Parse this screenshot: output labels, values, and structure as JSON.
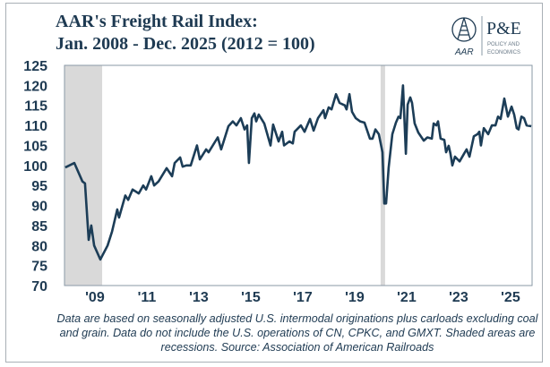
{
  "header": {
    "title_line1": "AAR's Freight Rail Index:",
    "title_line2": "Jan. 2008 - Dec. 2025 (2012 = 100)"
  },
  "logo": {
    "aar": "AAR",
    "pe": "P&E",
    "pe_sub1": "POLICY AND",
    "pe_sub2": "ECONOMICS"
  },
  "colors": {
    "line": "#1c3d57",
    "recession": "#d9d9d9",
    "text": "#1e3a52"
  },
  "chart_data": {
    "type": "line",
    "title": "AAR's Freight Rail Index: Jan. 2008 - Dec. 2025 (2012 = 100)",
    "xlabel": "",
    "ylabel": "",
    "xlim": [
      2008,
      2026
    ],
    "ylim": [
      70,
      125
    ],
    "yticks": [
      70,
      75,
      80,
      85,
      90,
      95,
      100,
      105,
      110,
      115,
      120,
      125
    ],
    "xtick_labels": [
      {
        "year": 2009,
        "label": "'09"
      },
      {
        "year": 2011,
        "label": "'11"
      },
      {
        "year": 2013,
        "label": "'13"
      },
      {
        "year": 2015,
        "label": "'15"
      },
      {
        "year": 2017,
        "label": "'17"
      },
      {
        "year": 2019,
        "label": "'19"
      },
      {
        "year": 2021,
        "label": "'21"
      },
      {
        "year": 2023,
        "label": "'23"
      },
      {
        "year": 2025,
        "label": "'25"
      }
    ],
    "recessions": [
      [
        2008.0,
        2009.45
      ],
      [
        2020.17,
        2020.3
      ]
    ],
    "series": [
      {
        "name": "Freight Rail Index",
        "x": [
          2008.03,
          2008.38,
          2008.69,
          2008.79,
          2008.93,
          2009.03,
          2009.14,
          2009.38,
          2009.66,
          2009.83,
          2010.03,
          2010.1,
          2010.34,
          2010.45,
          2010.62,
          2010.86,
          2011.03,
          2011.14,
          2011.34,
          2011.45,
          2011.62,
          2011.93,
          2012.14,
          2012.24,
          2012.45,
          2012.55,
          2012.69,
          2012.86,
          2013.1,
          2013.21,
          2013.45,
          2013.55,
          2013.9,
          2014.03,
          2014.31,
          2014.48,
          2014.62,
          2014.79,
          2014.93,
          2015.03,
          2015.1,
          2015.21,
          2015.31,
          2015.38,
          2015.48,
          2015.69,
          2015.93,
          2016.03,
          2016.24,
          2016.38,
          2016.45,
          2016.66,
          2016.79,
          2016.86,
          2017.1,
          2017.24,
          2017.45,
          2017.59,
          2017.76,
          2017.97,
          2018.03,
          2018.17,
          2018.28,
          2018.45,
          2018.59,
          2018.79,
          2018.86,
          2018.97,
          2019.07,
          2019.21,
          2019.38,
          2019.55,
          2019.76,
          2019.86,
          2019.97,
          2020.1,
          2020.24,
          2020.31,
          2020.38,
          2020.48,
          2020.62,
          2020.76,
          2020.86,
          2020.93,
          2021.03,
          2021.14,
          2021.21,
          2021.31,
          2021.38,
          2021.48,
          2021.62,
          2021.83,
          2021.97,
          2022.14,
          2022.21,
          2022.31,
          2022.38,
          2022.48,
          2022.62,
          2022.69,
          2022.79,
          2022.86,
          2022.93,
          2023.03,
          2023.21,
          2023.38,
          2023.48,
          2023.59,
          2023.76,
          2023.9,
          2023.97,
          2024.03,
          2024.14,
          2024.31,
          2024.45,
          2024.59,
          2024.69,
          2024.79,
          2024.93,
          2025.07,
          2025.21,
          2025.31,
          2025.41,
          2025.48,
          2025.59,
          2025.69,
          2025.79,
          2025.97
        ],
        "values": [
          99.5,
          100.6,
          96,
          95.5,
          81.4,
          85,
          80,
          76.5,
          80,
          83.5,
          89,
          87,
          92.5,
          91.4,
          94,
          93,
          95,
          94,
          97.3,
          95,
          96,
          99.3,
          97.3,
          100.6,
          102,
          99.7,
          100,
          100,
          105,
          101.5,
          104,
          103.3,
          107,
          104,
          109.8,
          111,
          110,
          111.8,
          109,
          110,
          100.6,
          111.8,
          113,
          111,
          112.7,
          110.5,
          105,
          110.2,
          106,
          108.4,
          105,
          106,
          105.5,
          108.4,
          110,
          108.4,
          111.6,
          108.7,
          111.8,
          113.8,
          111.8,
          114.5,
          114,
          117.8,
          115.6,
          115,
          114,
          117.8,
          113.4,
          111.8,
          111,
          110.7,
          106.7,
          106.7,
          109,
          107.8,
          103.3,
          90.5,
          90.5,
          99.5,
          107.8,
          110.7,
          112.2,
          111.8,
          120,
          102.9,
          115.2,
          117,
          115.6,
          110.5,
          108.2,
          106.2,
          107,
          106.7,
          110.5,
          110,
          111,
          106.7,
          106.4,
          103.3,
          104.9,
          102.9,
          100,
          102.2,
          101,
          102.9,
          104,
          102.2,
          107.3,
          107.8,
          108.4,
          105,
          109.3,
          107.8,
          110,
          110,
          112.2,
          111.6,
          116.7,
          112.2,
          114.7,
          112.7,
          109.3,
          109,
          112.2,
          111.8,
          110,
          109.8
        ]
      }
    ]
  },
  "footnote": "Data are based on seasonally adjusted U.S. intermodal originations plus carloads excluding coal and grain. Data do not include the U.S. operations of CN, CPKC, and GMXT. Shaded areas are recessions. Source: Association of American Railroads"
}
